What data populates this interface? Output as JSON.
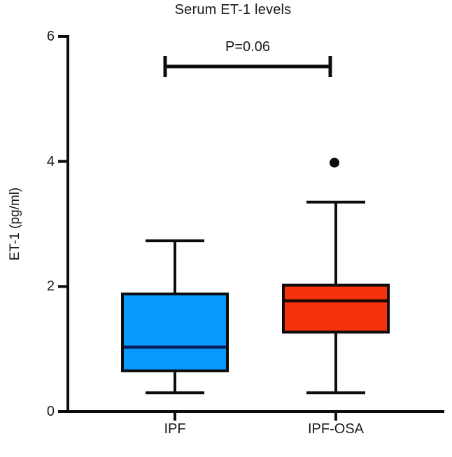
{
  "chart_data": {
    "type": "box",
    "title": "Serum ET-1 levels",
    "ylabel": "ET-1 (pg/ml)",
    "xlabel": "",
    "ylim": [
      0,
      6
    ],
    "yticks": [
      0,
      2,
      4,
      6
    ],
    "ytick_labels": [
      "0",
      "2",
      "4",
      "6"
    ],
    "categories": [
      "IPF",
      "IPF-OSA"
    ],
    "series": [
      {
        "name": "IPF",
        "color": "#0998FC",
        "median_color": "#0a1b55",
        "whisker_low": 0.3,
        "q1": 0.65,
        "median": 1.03,
        "q3": 1.88,
        "whisker_high": 2.73,
        "outliers": []
      },
      {
        "name": "IPF-OSA",
        "color": "#F5300D",
        "median_color": "#1c0b05",
        "whisker_low": 0.3,
        "q1": 1.27,
        "median": 1.77,
        "q3": 2.02,
        "whisker_high": 3.35,
        "outliers": [
          3.98
        ]
      }
    ],
    "annotation": {
      "label": "P=0.06",
      "connects": [
        "IPF",
        "IPF-OSA"
      ]
    },
    "grid": false,
    "legend": false,
    "axis_color": "#0d0d0d",
    "text_color": "#1a1a1a",
    "background_color": "#ffffff"
  }
}
